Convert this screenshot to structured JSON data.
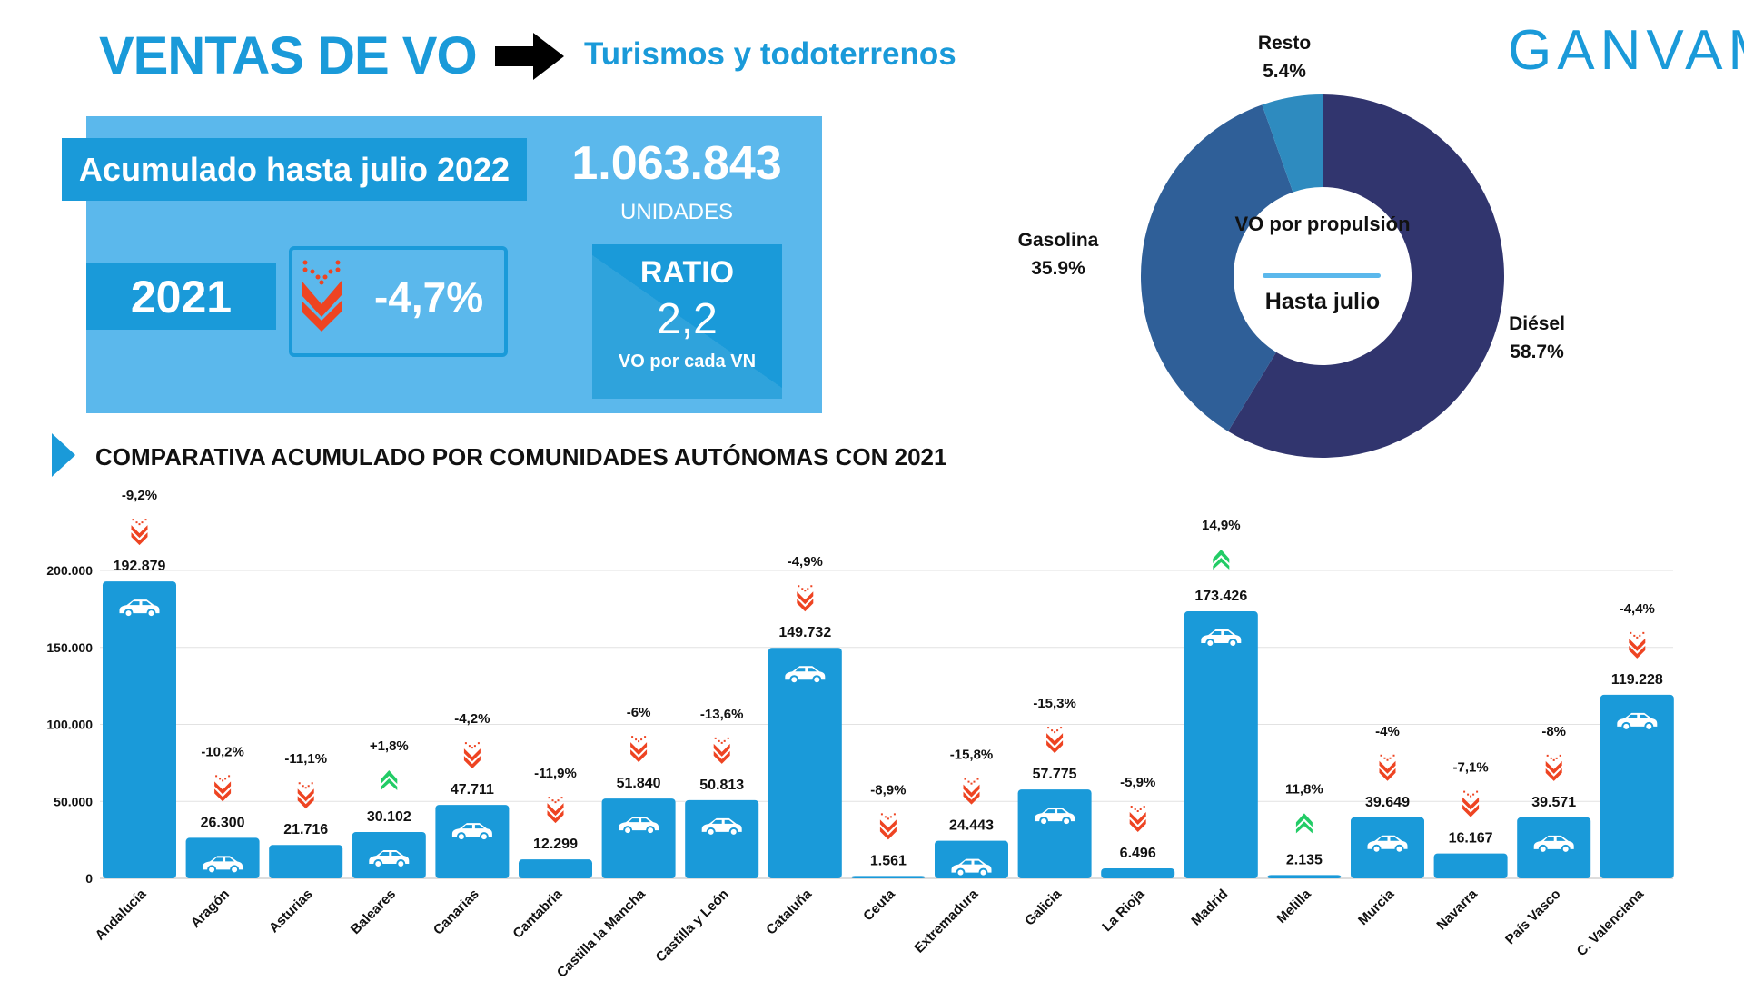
{
  "header": {
    "title": "VENTAS DE VO",
    "subtitle": "Turismos y todoterrenos",
    "logo": "GANVAM"
  },
  "summary": {
    "period_label": "Acumulado hasta julio 2022",
    "total": "1.063.843",
    "units_label": "UNIDADES",
    "compare_year": "2021",
    "change": "-4,7%",
    "change_direction": "down",
    "ratio_label": "RATIO",
    "ratio_value": "2,2",
    "ratio_caption": "VO por cada VN"
  },
  "donut": {
    "center_title": "VO por propulsión",
    "center_subtitle": "Hasta julio",
    "slices": [
      {
        "name": "Diésel",
        "pct_label": "58.7%",
        "value": 58.7,
        "color": "#31356e"
      },
      {
        "name": "Gasolina",
        "pct_label": "35.9%",
        "value": 35.9,
        "color": "#2f5f98"
      },
      {
        "name": "Resto",
        "pct_label": "5.4%",
        "value": 5.4,
        "color": "#2e8bbf"
      }
    ]
  },
  "section": {
    "title": "COMPARATIVA ACUMULADO POR COMUNIDADES AUTÓNOMAS CON 2021"
  },
  "colors": {
    "bar": "#1a9ad9",
    "down": "#ee4422",
    "up": "#22cc66"
  },
  "chart_data": [
    {
      "type": "pie",
      "title": "VO por propulsión - Hasta julio",
      "categories": [
        "Diésel",
        "Gasolina",
        "Resto"
      ],
      "values": [
        58.7,
        35.9,
        5.4
      ]
    },
    {
      "type": "bar",
      "title": "COMPARATIVA ACUMULADO POR COMUNIDADES AUTÓNOMAS CON 2021",
      "ylim": [
        0,
        200000
      ],
      "yticks": [
        0,
        50000,
        100000,
        150000,
        200000
      ],
      "ytick_labels": [
        "0",
        "50.000",
        "100.000",
        "150.000",
        "200.000"
      ],
      "grid": true,
      "categories": [
        "Andalucía",
        "Aragón",
        "Asturias",
        "Baleares",
        "Canarias",
        "Cantabria",
        "Castilla la Mancha",
        "Castilla y León",
        "Cataluña",
        "Ceuta",
        "Extremadura",
        "Galicia",
        "La Rioja",
        "Madrid",
        "Melilla",
        "Murcia",
        "Navarra",
        "País Vasco",
        "C. Valenciana"
      ],
      "values": [
        192879,
        26300,
        21716,
        30102,
        47711,
        12299,
        51840,
        50813,
        149732,
        1561,
        24443,
        57775,
        6496,
        173426,
        2135,
        39649,
        16167,
        39571,
        119228
      ],
      "value_labels": [
        "192.879",
        "26.300",
        "21.716",
        "30.102",
        "47.711",
        "12.299",
        "51.840",
        "50.813",
        "149.732",
        "1.561",
        "24.443",
        "57.775",
        "6.496",
        "173.426",
        "2.135",
        "39.649",
        "16.167",
        "39.571",
        "119.228"
      ],
      "change_labels": [
        "-9,2%",
        "-10,2%",
        "-11,1%",
        "+1,8%",
        "-4,2%",
        "-11,9%",
        "-6%",
        "-13,6%",
        "-4,9%",
        "-8,9%",
        "-15,8%",
        "-15,3%",
        "-5,9%",
        "14,9%",
        "11,8%",
        "-4%",
        "-7,1%",
        "-8%",
        "-4,4%"
      ],
      "change_values": [
        -9.2,
        -10.2,
        -11.1,
        1.8,
        -4.2,
        -11.9,
        -6,
        -13.6,
        -4.9,
        -8.9,
        -15.8,
        -15.3,
        -5.9,
        14.9,
        11.8,
        -4,
        -7.1,
        -8,
        -4.4
      ]
    }
  ]
}
